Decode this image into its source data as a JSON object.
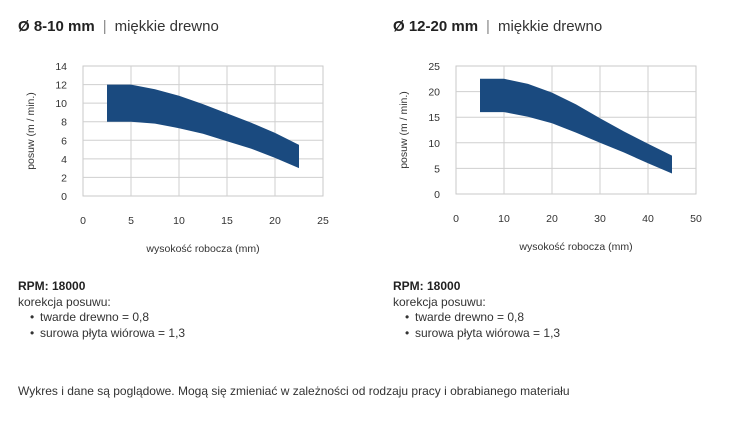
{
  "charts": [
    {
      "title_diameter": "Ø 8-10 mm",
      "title_separator": "|",
      "title_material": "miękkie drewno",
      "rpm": "RPM: 18000",
      "correction_label": "korekcja posuwu:",
      "corrections": [
        "twarde drewno = 0,8",
        "surowa płyta wiórowa = 1,3"
      ]
    },
    {
      "title_diameter": "Ø 12-20 mm",
      "title_separator": "|",
      "title_material": "miękkie drewno",
      "rpm": "RPM: 18000",
      "correction_label": "korekcja posuwu:",
      "corrections": [
        "twarde drewno = 0,8",
        "surowa płyta wiórowa = 1,3"
      ]
    }
  ],
  "footer": "Wykres i dane są poglądowe. Mogą się zmieniać w zależności od rodzaju pracy i obrabianego materiału",
  "chart_data": [
    {
      "type": "area",
      "xlabel": "wysokość robocza (mm)",
      "ylabel": "posuw (m / min.)",
      "xlim": [
        0,
        25
      ],
      "ylim": [
        0,
        14
      ],
      "xticks": [
        0,
        5,
        10,
        15,
        20,
        25
      ],
      "yticks": [
        0,
        2,
        4,
        6,
        8,
        10,
        12,
        14
      ],
      "grid": true,
      "fill_color": "#1a4a7f",
      "band": {
        "x": [
          2.5,
          5,
          7.5,
          10,
          12.5,
          15,
          17.5,
          20,
          22.5
        ],
        "upper": [
          12,
          12,
          11.5,
          10.8,
          9.9,
          8.9,
          7.9,
          6.8,
          5.5
        ],
        "lower": [
          8,
          8,
          7.8,
          7.3,
          6.7,
          5.9,
          5.1,
          4.1,
          3
        ]
      }
    },
    {
      "type": "area",
      "xlabel": "wysokość robocza (mm)",
      "ylabel": "posuw (m / min.)",
      "xlim": [
        0,
        50
      ],
      "ylim": [
        0,
        25
      ],
      "xticks": [
        0,
        10,
        20,
        30,
        40,
        50
      ],
      "yticks": [
        0,
        5,
        10,
        15,
        20,
        25
      ],
      "grid": true,
      "fill_color": "#1a4a7f",
      "band": {
        "x": [
          5,
          10,
          15,
          20,
          25,
          30,
          35,
          40,
          45
        ],
        "upper": [
          22.5,
          22.5,
          21.5,
          19.8,
          17.5,
          14.8,
          12.2,
          9.8,
          7.5
        ],
        "lower": [
          16,
          16,
          15.1,
          13.8,
          12,
          10,
          8.1,
          6,
          4
        ]
      }
    }
  ]
}
